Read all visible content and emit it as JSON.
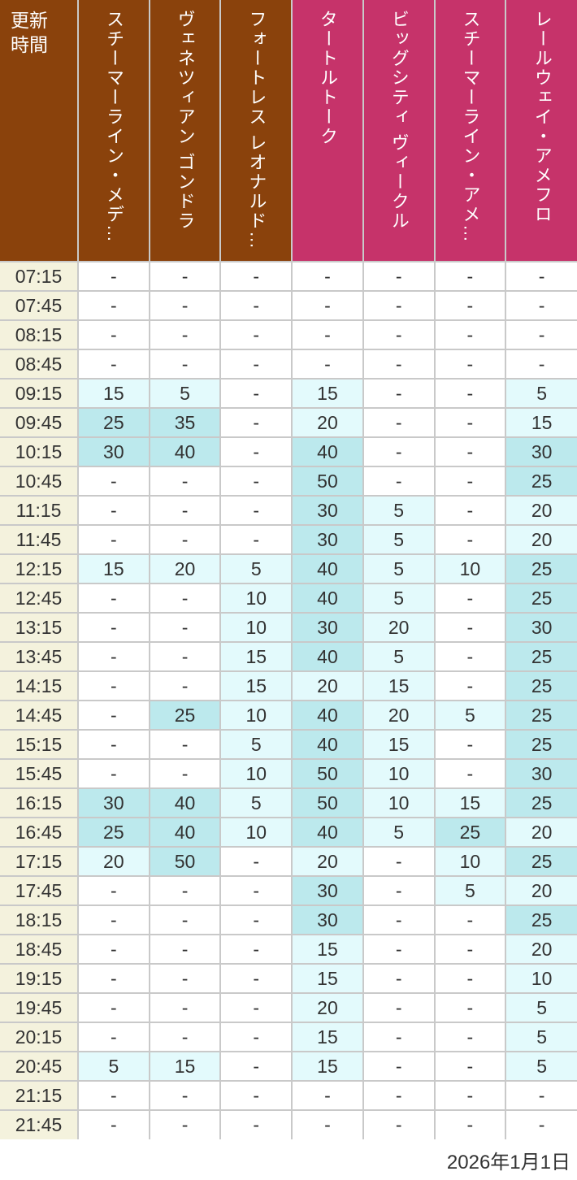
{
  "colors": {
    "header_brown": "#8a420c",
    "header_pink": "#c6336a",
    "time_column_bg": "#f4f2dd",
    "wait_low_bg": "#e3fafc",
    "wait_high_bg": "#bce9ed",
    "grid_border": "#c9c9c9",
    "text_dark": "#333333",
    "header_text": "#ffffff"
  },
  "table": {
    "corner_header": "更新時間",
    "no_data_symbol": "-",
    "highlight": {
      "strong_min": 25
    },
    "columns": [
      {
        "label": "スチーマーライン・メデ…",
        "group": "brown"
      },
      {
        "label": "ヴェネツィアン ゴンドラ",
        "group": "brown"
      },
      {
        "label": "フォートレス レオナルド…",
        "group": "brown"
      },
      {
        "label": "タートルトーク",
        "group": "pink"
      },
      {
        "label": "ビッグシティ ヴィークル",
        "group": "pink"
      },
      {
        "label": "スチーマーライン・アメ…",
        "group": "pink"
      },
      {
        "label": "レールウェイ・アメフロ",
        "group": "pink"
      }
    ],
    "rows": [
      {
        "time": "07:15",
        "values": [
          "-",
          "-",
          "-",
          "-",
          "-",
          "-",
          "-"
        ]
      },
      {
        "time": "07:45",
        "values": [
          "-",
          "-",
          "-",
          "-",
          "-",
          "-",
          "-"
        ]
      },
      {
        "time": "08:15",
        "values": [
          "-",
          "-",
          "-",
          "-",
          "-",
          "-",
          "-"
        ]
      },
      {
        "time": "08:45",
        "values": [
          "-",
          "-",
          "-",
          "-",
          "-",
          "-",
          "-"
        ]
      },
      {
        "time": "09:15",
        "values": [
          "15",
          "5",
          "-",
          "15",
          "-",
          "-",
          "5"
        ]
      },
      {
        "time": "09:45",
        "values": [
          "25",
          "35",
          "-",
          "20",
          "-",
          "-",
          "15"
        ]
      },
      {
        "time": "10:15",
        "values": [
          "30",
          "40",
          "-",
          "40",
          "-",
          "-",
          "30"
        ]
      },
      {
        "time": "10:45",
        "values": [
          "-",
          "-",
          "-",
          "50",
          "-",
          "-",
          "25"
        ]
      },
      {
        "time": "11:15",
        "values": [
          "-",
          "-",
          "-",
          "30",
          "5",
          "-",
          "20"
        ]
      },
      {
        "time": "11:45",
        "values": [
          "-",
          "-",
          "-",
          "30",
          "5",
          "-",
          "20"
        ]
      },
      {
        "time": "12:15",
        "values": [
          "15",
          "20",
          "5",
          "40",
          "5",
          "10",
          "25"
        ]
      },
      {
        "time": "12:45",
        "values": [
          "-",
          "-",
          "10",
          "40",
          "5",
          "-",
          "25"
        ]
      },
      {
        "time": "13:15",
        "values": [
          "-",
          "-",
          "10",
          "30",
          "20",
          "-",
          "30"
        ]
      },
      {
        "time": "13:45",
        "values": [
          "-",
          "-",
          "15",
          "40",
          "5",
          "-",
          "25"
        ]
      },
      {
        "time": "14:15",
        "values": [
          "-",
          "-",
          "15",
          "20",
          "15",
          "-",
          "25"
        ]
      },
      {
        "time": "14:45",
        "values": [
          "-",
          "25",
          "10",
          "40",
          "20",
          "5",
          "25"
        ]
      },
      {
        "time": "15:15",
        "values": [
          "-",
          "-",
          "5",
          "40",
          "15",
          "-",
          "25"
        ]
      },
      {
        "time": "15:45",
        "values": [
          "-",
          "-",
          "10",
          "50",
          "10",
          "-",
          "30"
        ]
      },
      {
        "time": "16:15",
        "values": [
          "30",
          "40",
          "5",
          "50",
          "10",
          "15",
          "25"
        ]
      },
      {
        "time": "16:45",
        "values": [
          "25",
          "40",
          "10",
          "40",
          "5",
          "25",
          "20"
        ]
      },
      {
        "time": "17:15",
        "values": [
          "20",
          "50",
          "-",
          "20",
          "-",
          "10",
          "25"
        ]
      },
      {
        "time": "17:45",
        "values": [
          "-",
          "-",
          "-",
          "30",
          "-",
          "5",
          "20"
        ]
      },
      {
        "time": "18:15",
        "values": [
          "-",
          "-",
          "-",
          "30",
          "-",
          "-",
          "25"
        ]
      },
      {
        "time": "18:45",
        "values": [
          "-",
          "-",
          "-",
          "15",
          "-",
          "-",
          "20"
        ]
      },
      {
        "time": "19:15",
        "values": [
          "-",
          "-",
          "-",
          "15",
          "-",
          "-",
          "10"
        ]
      },
      {
        "time": "19:45",
        "values": [
          "-",
          "-",
          "-",
          "20",
          "-",
          "-",
          "5"
        ]
      },
      {
        "time": "20:15",
        "values": [
          "-",
          "-",
          "-",
          "15",
          "-",
          "-",
          "5"
        ]
      },
      {
        "time": "20:45",
        "values": [
          "5",
          "15",
          "-",
          "15",
          "-",
          "-",
          "5"
        ]
      },
      {
        "time": "21:15",
        "values": [
          "-",
          "-",
          "-",
          "-",
          "-",
          "-",
          "-"
        ]
      },
      {
        "time": "21:45",
        "values": [
          "-",
          "-",
          "-",
          "-",
          "-",
          "-",
          "-"
        ]
      }
    ]
  },
  "footer": {
    "date": "2026年1月1日"
  }
}
